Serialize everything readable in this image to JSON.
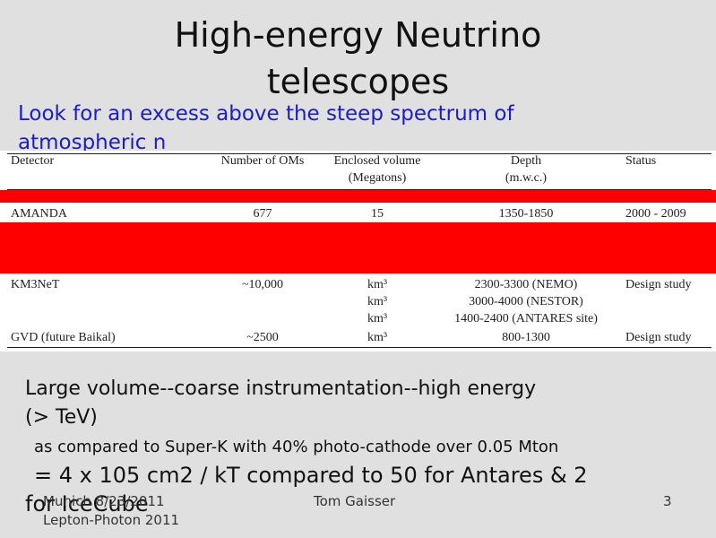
{
  "title": [
    "High-energy Neutrino",
    "telescopes"
  ],
  "subtitle": [
    "Look for an excess above the steep spectrum of",
    "atmospheric n"
  ],
  "table": {
    "header": [
      [
        "Detector"
      ],
      [
        "Number of OMs"
      ],
      [
        "Enclosed volume",
        "(Megatons)"
      ],
      [
        "Depth",
        "(m.w.c.)"
      ],
      [
        "Status"
      ]
    ],
    "rows": [
      [
        [
          "AMANDA"
        ],
        [
          "677"
        ],
        [
          "15"
        ],
        [
          "1350-1850"
        ],
        [
          "2000 - 2009"
        ]
      ],
      [
        [
          "KM3NeT"
        ],
        [
          "~10,000"
        ],
        [
          "km³",
          "km³",
          "km³"
        ],
        [
          "2300-3300 (NEMO)",
          "3000-4000 (NESTOR)",
          "1400-2400 (ANTARES site)"
        ],
        [
          "Design study"
        ]
      ],
      [
        [
          "GVD (future Baikal)"
        ],
        [
          "~2500"
        ],
        [
          "km³"
        ],
        [
          "800-1300"
        ],
        [
          "Design study"
        ]
      ]
    ]
  },
  "body": [
    "Large volume--coarse instrumentation--high energy",
    "(> TeV)",
    "as compared to Super-K with 40% photo-cathode over 0.05 Mton",
    "= 4 x 105 cm2 / kT compared to 50 for Antares & 2",
    "for IceCube"
  ],
  "footer": {
    "left": [
      "Munich 8/23/2011",
      "Lepton-Photon 2011"
    ],
    "center": "Tom Gaisser",
    "page": "3"
  }
}
